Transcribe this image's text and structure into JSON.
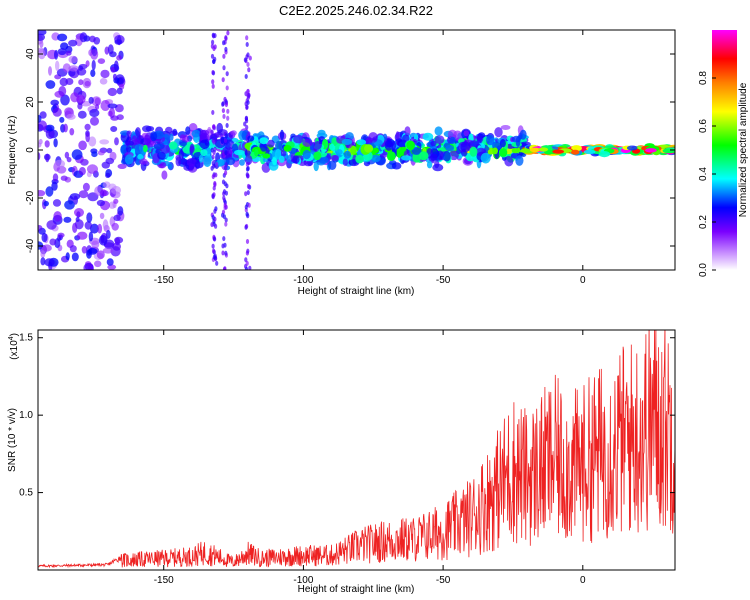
{
  "title": "C2E2.2025.246.02.34.R22",
  "chart_data": [
    {
      "type": "heatmap",
      "name": "spectrogram",
      "xlabel": "Height of straight line (km)",
      "ylabel": "Frequency (Hz)",
      "xlim": [
        -195,
        33
      ],
      "ylim": [
        -50,
        50
      ],
      "xticks": [
        -150,
        -100,
        -50,
        0
      ],
      "xtick_labels": [
        "-150",
        "-100",
        "-50",
        "0"
      ],
      "yticks": [
        -40,
        -20,
        0,
        20,
        40
      ],
      "ytick_labels": [
        "-40",
        "-20",
        "0",
        "20",
        "40"
      ],
      "colormap": [
        "#ffffff",
        "#7a00ff",
        "#0000ff",
        "#00ffff",
        "#00ff00",
        "#ffff00",
        "#ff7f00",
        "#ff0000",
        "#ff00ff"
      ],
      "colorbar": {
        "label": "Normalized spectral amplitude",
        "range": [
          0,
          1
        ],
        "ticks": [
          0.0,
          0.2,
          0.4,
          0.6,
          0.8
        ],
        "tick_labels": [
          "0.0",
          "0.2",
          "0.4",
          "0.6",
          "0.8"
        ]
      },
      "regions": [
        {
          "x_range": [
            -195,
            -165
          ],
          "freq_spread": 50,
          "intensity": 0.22,
          "description": "broadband scattered energy"
        },
        {
          "x_range": [
            -165,
            -120
          ],
          "freq_spread": 12,
          "intensity": 0.35,
          "description": "band around 0 Hz, +-12 Hz"
        },
        {
          "x_range": [
            -120,
            -20
          ],
          "freq_spread": 9,
          "intensity": 0.45,
          "description": "band around 0 Hz"
        },
        {
          "x_range": [
            -20,
            33
          ],
          "freq_spread": 2,
          "intensity": 0.9,
          "description": "narrow strong line at 0 Hz"
        }
      ]
    },
    {
      "type": "line",
      "name": "snr",
      "xlabel": "Height of straight line (km)",
      "ylabel": "SNR (10 * v/v)",
      "y_multiplier_label": "(x10",
      "y_multiplier_exp": "4",
      "xlim": [
        -195,
        33
      ],
      "ylim": [
        0,
        1.55
      ],
      "xticks": [
        -150,
        -100,
        -50,
        0
      ],
      "xtick_labels": [
        "-150",
        "-100",
        "-50",
        "0"
      ],
      "yticks": [
        0.5,
        1.0,
        1.5
      ],
      "ytick_labels": [
        "0.5",
        "1.0",
        "1.5"
      ],
      "color": "#ee2222",
      "series": [
        {
          "name": "SNR envelope",
          "x": [
            -195,
            -170,
            -165,
            -150,
            -140,
            -135,
            -125,
            -120,
            -115,
            -105,
            -100,
            -90,
            -80,
            -70,
            -60,
            -50,
            -40,
            -30,
            -25,
            -20,
            -15,
            -10,
            -5,
            0,
            5,
            10,
            15,
            20,
            25,
            30,
            33
          ],
          "y": [
            0.03,
            0.04,
            0.1,
            0.12,
            0.14,
            0.18,
            0.08,
            0.17,
            0.12,
            0.14,
            0.15,
            0.15,
            0.25,
            0.3,
            0.32,
            0.4,
            0.55,
            0.85,
            1.05,
            0.95,
            1.05,
            1.15,
            1.05,
            1.1,
            1.2,
            1.25,
            1.35,
            1.4,
            1.55,
            1.5,
            1.45
          ]
        }
      ]
    }
  ]
}
